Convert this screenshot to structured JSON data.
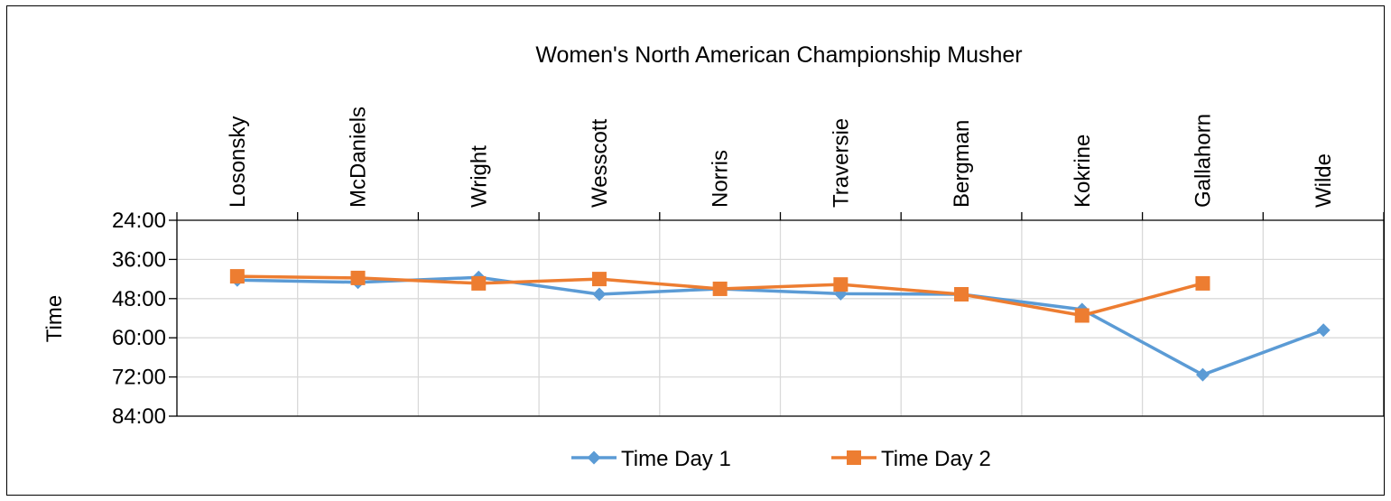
{
  "chart_data": {
    "type": "line",
    "xlabel": "Women's North American Championship Musher",
    "ylabel": "Time",
    "y_axis_reversed": true,
    "x_axis_position": "top",
    "y_ticks": [
      "24:00",
      "36:00",
      "48:00",
      "60:00",
      "72:00",
      "84:00"
    ],
    "y_tick_minutes": [
      24,
      36,
      48,
      60,
      72,
      84
    ],
    "ylim": [
      "24:00",
      "84:00"
    ],
    "categories": [
      "Losonsky",
      "McDaniels",
      "Wright",
      "Wesscott",
      "Norris",
      "Traversie",
      "Bergman",
      "Kokrine",
      "Gallahorn",
      "Wilde"
    ],
    "grid": true,
    "legend_position": "bottom",
    "series": [
      {
        "name": "Time Day 1",
        "color": "#5B9BD5",
        "marker": "diamond",
        "values": [
          "42:20",
          "43:00",
          "41:30",
          "46:40",
          "45:00",
          "46:30",
          "46:40",
          "51:20",
          "71:20",
          "57:40"
        ],
        "values_minutes": [
          42.33,
          43.0,
          41.5,
          46.67,
          45.0,
          46.5,
          46.67,
          51.33,
          71.33,
          57.67
        ]
      },
      {
        "name": "Time Day 2",
        "color": "#ED7D31",
        "marker": "square",
        "values": [
          "41:10",
          "41:40",
          "43:20",
          "42:00",
          "45:00",
          "43:40",
          "46:40",
          "53:10",
          "43:20",
          null
        ],
        "values_minutes": [
          41.17,
          41.67,
          43.33,
          42.0,
          45.0,
          43.67,
          46.67,
          53.17,
          43.33,
          null
        ]
      }
    ]
  }
}
